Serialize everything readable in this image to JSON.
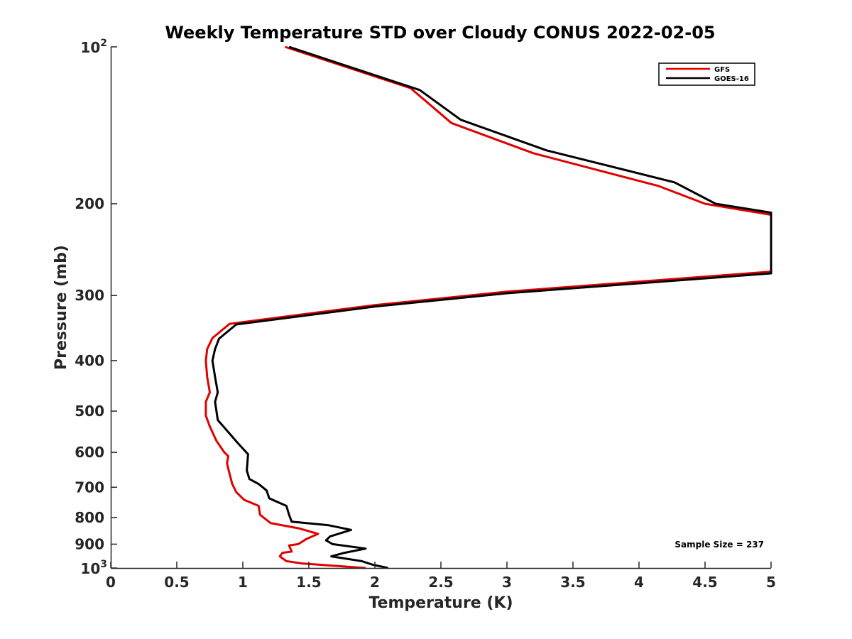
{
  "chart_data": {
    "type": "line",
    "title": "Weekly Temperature STD over Cloudy CONUS 2022-02-05",
    "xlabel": "Temperature (K)",
    "ylabel": "Pressure (mb)",
    "xlim": [
      0,
      5
    ],
    "ylim": [
      100,
      1000
    ],
    "y_scale": "log",
    "y_reversed": true,
    "grid": false,
    "legend_position": "top-right",
    "x_ticks": [
      "0",
      "0.5",
      "1",
      "1.5",
      "2",
      "2.5",
      "3",
      "3.5",
      "4",
      "4.5",
      "5"
    ],
    "y_ticks": [
      {
        "value": 100,
        "label": "10",
        "exp": "2"
      },
      {
        "value": 200,
        "label": "200",
        "exp": ""
      },
      {
        "value": 300,
        "label": "300",
        "exp": ""
      },
      {
        "value": 400,
        "label": "400",
        "exp": ""
      },
      {
        "value": 500,
        "label": "500",
        "exp": ""
      },
      {
        "value": 600,
        "label": "600",
        "exp": ""
      },
      {
        "value": 700,
        "label": "700",
        "exp": ""
      },
      {
        "value": 800,
        "label": "800",
        "exp": ""
      },
      {
        "value": 900,
        "label": "900",
        "exp": ""
      },
      {
        "value": 1000,
        "label": "10",
        "exp": "3"
      }
    ],
    "annotation": "Sample Size = 237",
    "series": [
      {
        "name": "GFS",
        "color": "#e00000",
        "points": [
          [
            1.32,
            100
          ],
          [
            2.27,
            120
          ],
          [
            2.58,
            140
          ],
          [
            3.2,
            160
          ],
          [
            4.15,
            185
          ],
          [
            4.5,
            200
          ],
          [
            5.0,
            210
          ],
          [
            5.0,
            270
          ],
          [
            3.0,
            295
          ],
          [
            2.0,
            313
          ],
          [
            0.9,
            340
          ],
          [
            0.77,
            362
          ],
          [
            0.73,
            380
          ],
          [
            0.72,
            400
          ],
          [
            0.73,
            430
          ],
          [
            0.75,
            460
          ],
          [
            0.72,
            480
          ],
          [
            0.72,
            510
          ],
          [
            0.75,
            535
          ],
          [
            0.8,
            570
          ],
          [
            0.86,
            600
          ],
          [
            0.89,
            610
          ],
          [
            0.88,
            630
          ],
          [
            0.9,
            660
          ],
          [
            0.92,
            690
          ],
          [
            0.95,
            715
          ],
          [
            1.01,
            740
          ],
          [
            1.12,
            760
          ],
          [
            1.13,
            790
          ],
          [
            1.21,
            820
          ],
          [
            1.43,
            840
          ],
          [
            1.57,
            860
          ],
          [
            1.48,
            880
          ],
          [
            1.42,
            900
          ],
          [
            1.35,
            905
          ],
          [
            1.37,
            930
          ],
          [
            1.3,
            935
          ],
          [
            1.28,
            950
          ],
          [
            1.33,
            970
          ],
          [
            1.45,
            980
          ],
          [
            1.93,
            1000
          ]
        ]
      },
      {
        "name": "GOES-16",
        "color": "#000000",
        "points": [
          [
            1.35,
            100
          ],
          [
            2.34,
            121
          ],
          [
            2.65,
            138
          ],
          [
            3.3,
            158
          ],
          [
            4.27,
            182
          ],
          [
            4.58,
            200
          ],
          [
            5.0,
            208
          ],
          [
            5.0,
            272
          ],
          [
            3.0,
            297
          ],
          [
            2.0,
            315
          ],
          [
            0.95,
            341
          ],
          [
            0.82,
            363
          ],
          [
            0.79,
            380
          ],
          [
            0.77,
            400
          ],
          [
            0.79,
            430
          ],
          [
            0.81,
            460
          ],
          [
            0.79,
            480
          ],
          [
            0.81,
            520
          ],
          [
            0.88,
            545
          ],
          [
            0.96,
            575
          ],
          [
            1.0,
            590
          ],
          [
            1.04,
            605
          ],
          [
            1.03,
            650
          ],
          [
            1.05,
            675
          ],
          [
            1.12,
            690
          ],
          [
            1.18,
            710
          ],
          [
            1.2,
            735
          ],
          [
            1.33,
            760
          ],
          [
            1.35,
            790
          ],
          [
            1.37,
            815
          ],
          [
            1.65,
            828
          ],
          [
            1.82,
            845
          ],
          [
            1.66,
            870
          ],
          [
            1.63,
            885
          ],
          [
            1.68,
            900
          ],
          [
            1.93,
            918
          ],
          [
            1.77,
            935
          ],
          [
            1.67,
            950
          ],
          [
            1.9,
            970
          ],
          [
            1.98,
            985
          ],
          [
            2.1,
            1000
          ]
        ]
      }
    ]
  }
}
